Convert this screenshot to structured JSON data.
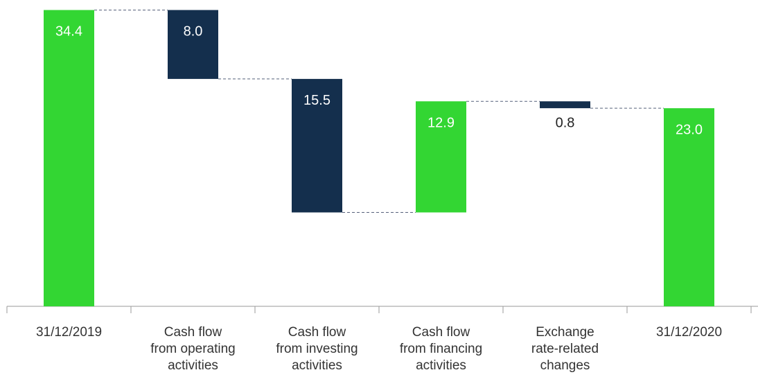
{
  "chart_data": {
    "type": "waterfall",
    "categories": [
      [
        "31/12/2019"
      ],
      [
        "Cash flow",
        "from operating",
        "activities"
      ],
      [
        "Cash flow",
        "from investing",
        "activities"
      ],
      [
        "Cash flow",
        "from financing",
        "activities"
      ],
      [
        "Exchange",
        "rate-related",
        "changes"
      ],
      [
        "31/12/2020"
      ]
    ],
    "measure": [
      "absolute",
      "relative",
      "relative",
      "relative",
      "relative",
      "total"
    ],
    "values": [
      34.4,
      -8.0,
      -15.5,
      12.9,
      -0.8,
      23.0
    ],
    "value_labels": [
      "34.4",
      "8.0",
      "15.5",
      "12.9",
      "0.8",
      "23.0"
    ],
    "increase_color": "#33d633",
    "decrease_color": "#142f4d",
    "ylim": [
      0,
      35
    ]
  }
}
